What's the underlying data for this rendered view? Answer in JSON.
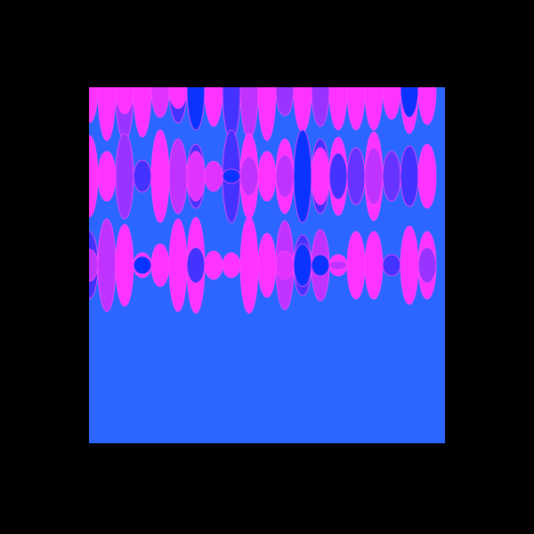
{
  "canvas": {
    "background": "#000000",
    "panel_color": "#2a66ff"
  },
  "palette": {
    "magenta": "#ff33ff",
    "pink": "#e033ff",
    "purple": "#c033ff",
    "violet": "#9933ff",
    "indigo": "#6633ff",
    "blue": "#4433ff",
    "deep_blue": "#0a33ff",
    "outline": "#ff44ff"
  }
}
